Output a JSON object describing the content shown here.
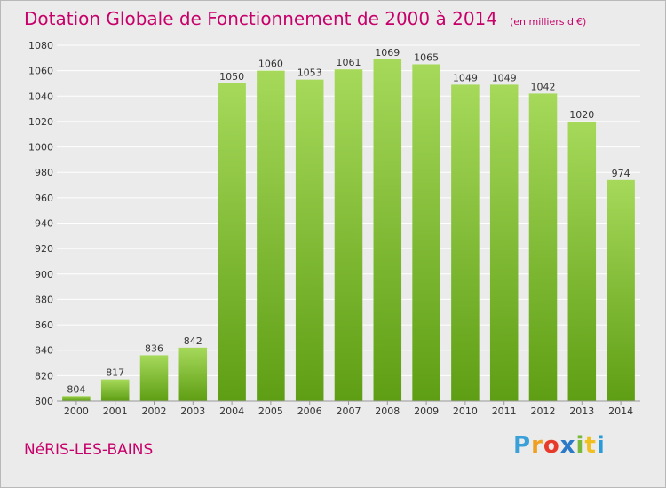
{
  "header": {
    "title": "Dotation Globale de Fonctionnement de 2000 à 2014",
    "subtitle": "(en milliers d'€)"
  },
  "footer": {
    "city": "NéRIS-LES-BAINS",
    "logo_letters": [
      "P",
      "r",
      "o",
      "x",
      "i",
      "t",
      "i"
    ],
    "logo_colors": [
      "#3aa0d8",
      "#f0a020",
      "#e83a2a",
      "#2b7ac8",
      "#78b83a",
      "#f0c020",
      "#2a9ad8"
    ]
  },
  "chart_data": {
    "type": "bar",
    "categories": [
      "2000",
      "2001",
      "2002",
      "2003",
      "2004",
      "2005",
      "2006",
      "2007",
      "2008",
      "2009",
      "2010",
      "2011",
      "2012",
      "2013",
      "2014"
    ],
    "values": [
      804,
      817,
      836,
      842,
      1050,
      1060,
      1053,
      1061,
      1069,
      1065,
      1049,
      1049,
      1042,
      1020,
      974
    ],
    "ylim": [
      800,
      1080
    ],
    "yticks": [
      800,
      820,
      840,
      860,
      880,
      900,
      920,
      940,
      960,
      980,
      1000,
      1020,
      1040,
      1060,
      1080
    ],
    "grid": true,
    "colors": {
      "bar_top": "#a6d95a",
      "bar_bottom": "#5e9e14",
      "grid": "#ffffff",
      "axis_text": "#333333"
    }
  }
}
